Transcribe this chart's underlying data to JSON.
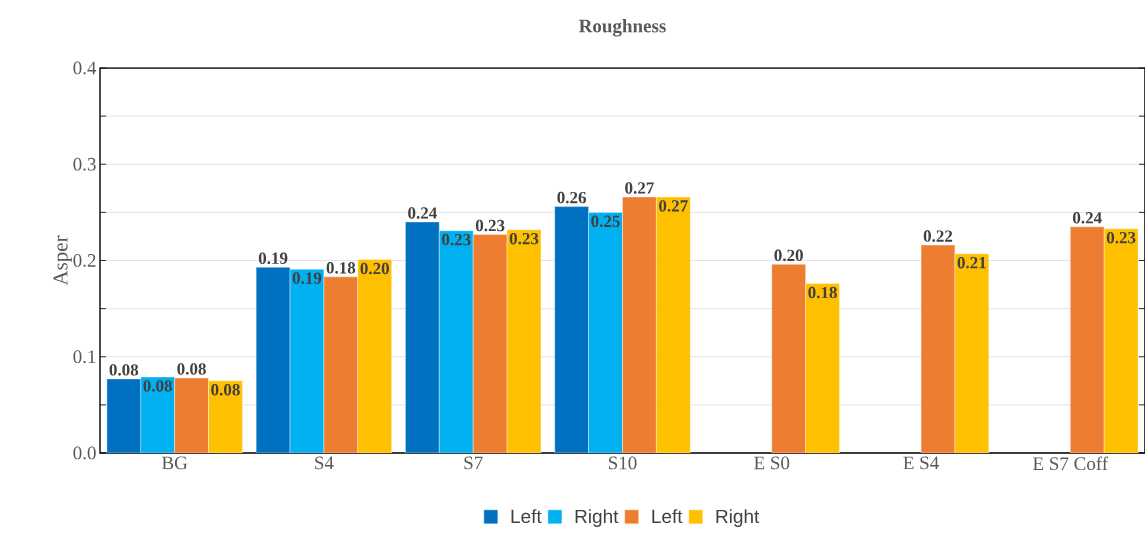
{
  "chart_data": {
    "type": "bar",
    "title": "Roughness",
    "ylabel": "Asper",
    "categories": [
      "BG",
      "S4",
      "S7",
      "S10",
      "E S0",
      "E S4",
      "E S7 Coff"
    ],
    "series": [
      {
        "name": "Left",
        "color": "#0070c0",
        "values": [
          0.077,
          0.193,
          0.24,
          0.256,
          null,
          null,
          null
        ],
        "value_labels": [
          "0.08",
          "0.19",
          "0.24",
          "0.26",
          null,
          null,
          null
        ]
      },
      {
        "name": "Right",
        "color": "#00b0f0",
        "values": [
          0.079,
          0.191,
          0.231,
          0.25,
          null,
          null,
          null
        ],
        "value_labels": [
          "0.08",
          "0.19",
          "0.23",
          "0.25",
          null,
          null,
          null
        ]
      },
      {
        "name": "Left",
        "color": "#ed7d31",
        "values": [
          0.078,
          0.183,
          0.227,
          0.266,
          0.196,
          0.216,
          0.235
        ],
        "value_labels": [
          "0.08",
          "0.18",
          "0.23",
          "0.27",
          "0.20",
          "0.22",
          "0.24"
        ]
      },
      {
        "name": "Right",
        "color": "#ffc000",
        "values": [
          0.075,
          0.201,
          0.232,
          0.266,
          0.176,
          0.207,
          0.233
        ],
        "value_labels": [
          "0.08",
          "0.20",
          "0.23",
          "0.27",
          "0.18",
          "0.21",
          "0.23"
        ]
      }
    ],
    "ylim": [
      0,
      0.4
    ],
    "yticks": [
      {
        "value": 0,
        "label": "0.0"
      },
      {
        "value": 0.05,
        "label": null
      },
      {
        "value": 0.1,
        "label": "0.1"
      },
      {
        "value": 0.15,
        "label": null
      },
      {
        "value": 0.2,
        "label": "0.2"
      },
      {
        "value": 0.25,
        "label": null
      },
      {
        "value": 0.3,
        "label": "0.3"
      },
      {
        "value": 0.35,
        "label": null
      },
      {
        "value": 0.4,
        "label": "0.4"
      }
    ],
    "grid": "y",
    "legend": "bottom"
  }
}
